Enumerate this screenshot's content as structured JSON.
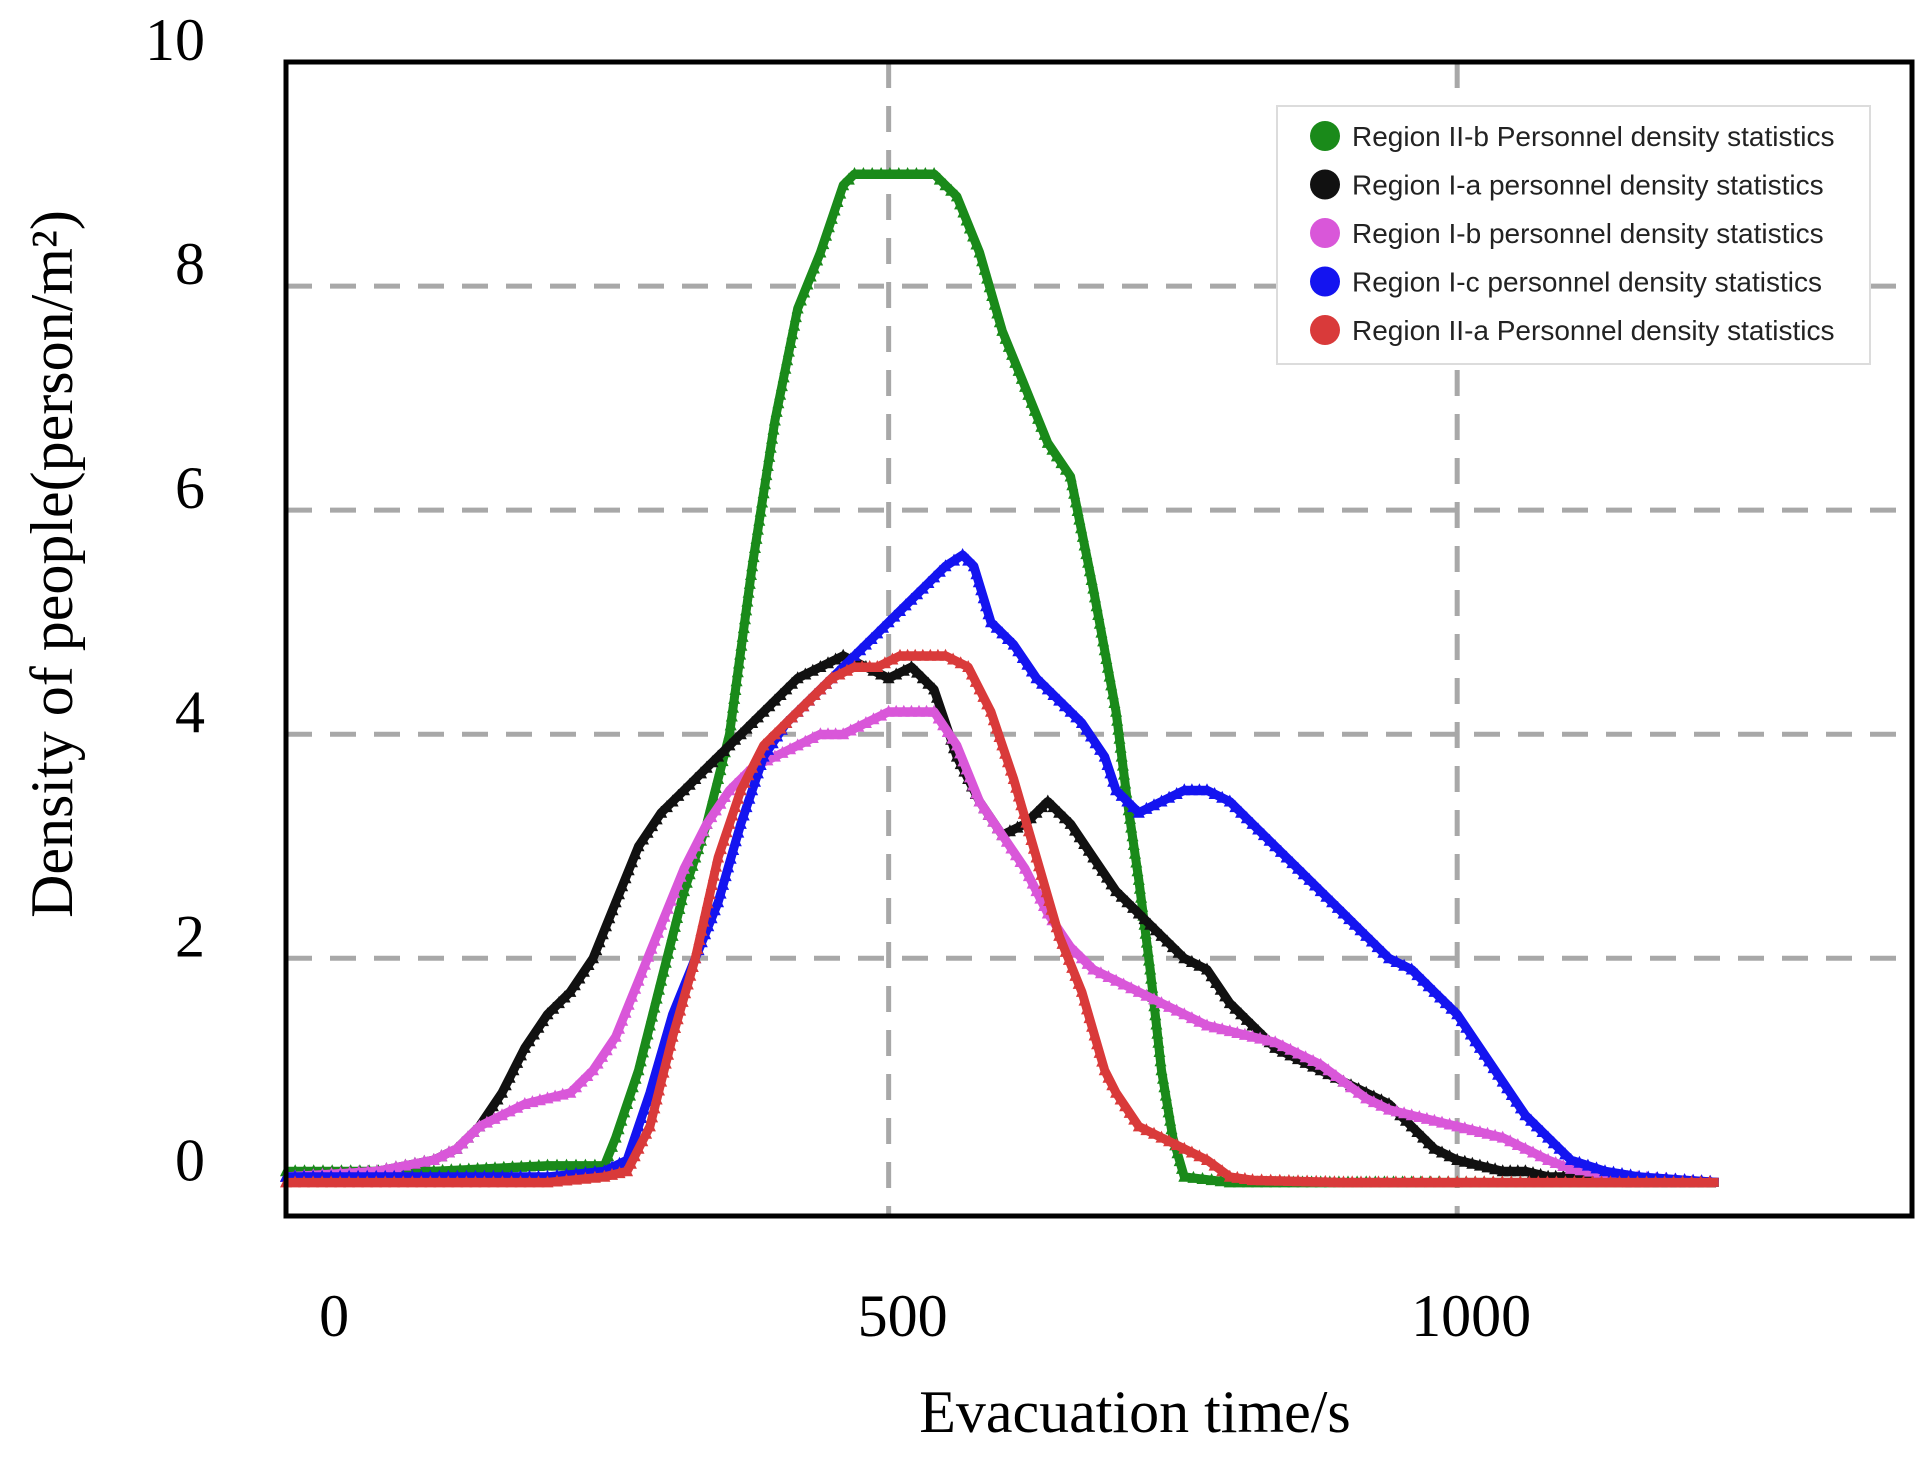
{
  "chart_data": {
    "type": "line",
    "title": "",
    "xlabel": "Evacuation time/s",
    "ylabel": "Density of people(person/m²)",
    "xlim": [
      -30,
      1400
    ],
    "ylim": [
      -0.3,
      10
    ],
    "xticks": [
      0,
      500,
      1000
    ],
    "xtick_labels": [
      "0",
      "500",
      "1000"
    ],
    "yticks": [
      0,
      2,
      4,
      6,
      8,
      10
    ],
    "ytick_labels": [
      "0",
      "2",
      "4",
      "6",
      "8",
      "10"
    ],
    "grid": true,
    "grid_y": [
      2,
      4,
      6,
      8
    ],
    "grid_x": [
      500,
      1000
    ],
    "legend_position": "top-right",
    "series": [
      {
        "name": "Region II-b Personnel density statistics",
        "color": "#1a8a1a",
        "x": [
          -30,
          100,
          200,
          250,
          260,
          280,
          300,
          320,
          340,
          360,
          380,
          400,
          420,
          440,
          460,
          470,
          540,
          560,
          580,
          600,
          620,
          640,
          660,
          680,
          700,
          710,
          720,
          730,
          740,
          750,
          760,
          800,
          1000,
          1230
        ],
        "y": [
          0.1,
          0.1,
          0.15,
          0.15,
          0.4,
          1.0,
          1.8,
          2.6,
          3.2,
          4.0,
          5.5,
          6.8,
          7.8,
          8.3,
          8.9,
          9.0,
          9.0,
          8.8,
          8.3,
          7.6,
          7.1,
          6.6,
          6.3,
          5.3,
          4.2,
          3.4,
          2.7,
          1.9,
          1.0,
          0.4,
          0.05,
          0.0,
          0.0,
          0.0
        ]
      },
      {
        "name": "Region I-a personnel density statistics",
        "color": "#111111",
        "x": [
          -30,
          50,
          100,
          120,
          140,
          160,
          180,
          200,
          220,
          240,
          260,
          280,
          300,
          320,
          340,
          360,
          380,
          400,
          420,
          440,
          460,
          480,
          500,
          520,
          540,
          560,
          580,
          600,
          620,
          640,
          660,
          680,
          700,
          720,
          740,
          760,
          780,
          800,
          820,
          840,
          860,
          880,
          900,
          940,
          960,
          980,
          1000,
          1020,
          1040,
          1060,
          1080,
          1100,
          1150,
          1200,
          1230
        ],
        "y": [
          0.05,
          0.1,
          0.2,
          0.3,
          0.5,
          0.8,
          1.2,
          1.5,
          1.7,
          2.0,
          2.5,
          3.0,
          3.3,
          3.5,
          3.7,
          3.9,
          4.1,
          4.3,
          4.5,
          4.6,
          4.7,
          4.6,
          4.5,
          4.6,
          4.4,
          3.8,
          3.4,
          3.1,
          3.2,
          3.4,
          3.2,
          2.9,
          2.6,
          2.4,
          2.2,
          2.0,
          1.9,
          1.6,
          1.4,
          1.2,
          1.1,
          1.0,
          0.9,
          0.7,
          0.5,
          0.3,
          0.2,
          0.15,
          0.1,
          0.1,
          0.05,
          0.05,
          0.0,
          0.0,
          0.0
        ]
      },
      {
        "name": "Region I-b personnel density statistics",
        "color": "#d957d9",
        "x": [
          -30,
          50,
          100,
          120,
          140,
          160,
          180,
          200,
          220,
          240,
          260,
          280,
          300,
          320,
          340,
          360,
          380,
          400,
          420,
          440,
          460,
          480,
          500,
          520,
          540,
          560,
          580,
          600,
          620,
          640,
          660,
          680,
          700,
          720,
          740,
          760,
          780,
          800,
          820,
          840,
          860,
          880,
          900,
          920,
          940,
          960,
          980,
          1000,
          1020,
          1040,
          1060,
          1080,
          1100,
          1150,
          1200,
          1230
        ],
        "y": [
          0.05,
          0.1,
          0.2,
          0.3,
          0.5,
          0.6,
          0.7,
          0.75,
          0.8,
          1.0,
          1.3,
          1.8,
          2.3,
          2.8,
          3.2,
          3.5,
          3.7,
          3.8,
          3.9,
          4.0,
          4.0,
          4.1,
          4.2,
          4.2,
          4.2,
          3.9,
          3.4,
          3.1,
          2.8,
          2.4,
          2.1,
          1.9,
          1.8,
          1.7,
          1.6,
          1.5,
          1.4,
          1.35,
          1.3,
          1.25,
          1.15,
          1.05,
          0.9,
          0.75,
          0.65,
          0.6,
          0.55,
          0.5,
          0.45,
          0.4,
          0.3,
          0.2,
          0.12,
          0.05,
          0.02,
          0.0
        ]
      },
      {
        "name": "Region I-c personnel density statistics",
        "color": "#1414f0",
        "x": [
          -30,
          200,
          250,
          270,
          290,
          310,
          330,
          350,
          370,
          390,
          410,
          430,
          450,
          470,
          490,
          510,
          530,
          550,
          565,
          575,
          590,
          610,
          630,
          650,
          670,
          690,
          700,
          720,
          740,
          760,
          780,
          800,
          820,
          840,
          860,
          880,
          900,
          920,
          940,
          960,
          980,
          1000,
          1020,
          1040,
          1060,
          1080,
          1100,
          1130,
          1160,
          1200,
          1230
        ],
        "y": [
          0.05,
          0.05,
          0.1,
          0.2,
          0.8,
          1.5,
          2.0,
          2.5,
          3.2,
          3.8,
          4.1,
          4.3,
          4.5,
          4.7,
          4.9,
          5.1,
          5.3,
          5.5,
          5.6,
          5.5,
          5.0,
          4.8,
          4.5,
          4.3,
          4.1,
          3.8,
          3.5,
          3.3,
          3.4,
          3.5,
          3.5,
          3.4,
          3.2,
          3.0,
          2.8,
          2.6,
          2.4,
          2.2,
          2.0,
          1.9,
          1.7,
          1.5,
          1.2,
          0.9,
          0.6,
          0.4,
          0.2,
          0.1,
          0.05,
          0.02,
          0.0
        ]
      },
      {
        "name": "Region II-a Personnel density statistics",
        "color": "#d93a3a",
        "x": [
          -30,
          200,
          250,
          270,
          290,
          310,
          330,
          350,
          370,
          390,
          410,
          430,
          450,
          470,
          490,
          510,
          530,
          550,
          570,
          590,
          610,
          630,
          650,
          670,
          690,
          700,
          720,
          740,
          760,
          780,
          800,
          820,
          900,
          1000,
          1230
        ],
        "y": [
          0.0,
          0.0,
          0.05,
          0.1,
          0.5,
          1.3,
          2.0,
          2.9,
          3.5,
          3.9,
          4.1,
          4.3,
          4.5,
          4.6,
          4.6,
          4.7,
          4.7,
          4.7,
          4.6,
          4.2,
          3.6,
          2.9,
          2.2,
          1.7,
          1.0,
          0.8,
          0.5,
          0.4,
          0.3,
          0.2,
          0.05,
          0.02,
          0.0,
          0.0,
          0.0
        ]
      }
    ]
  }
}
